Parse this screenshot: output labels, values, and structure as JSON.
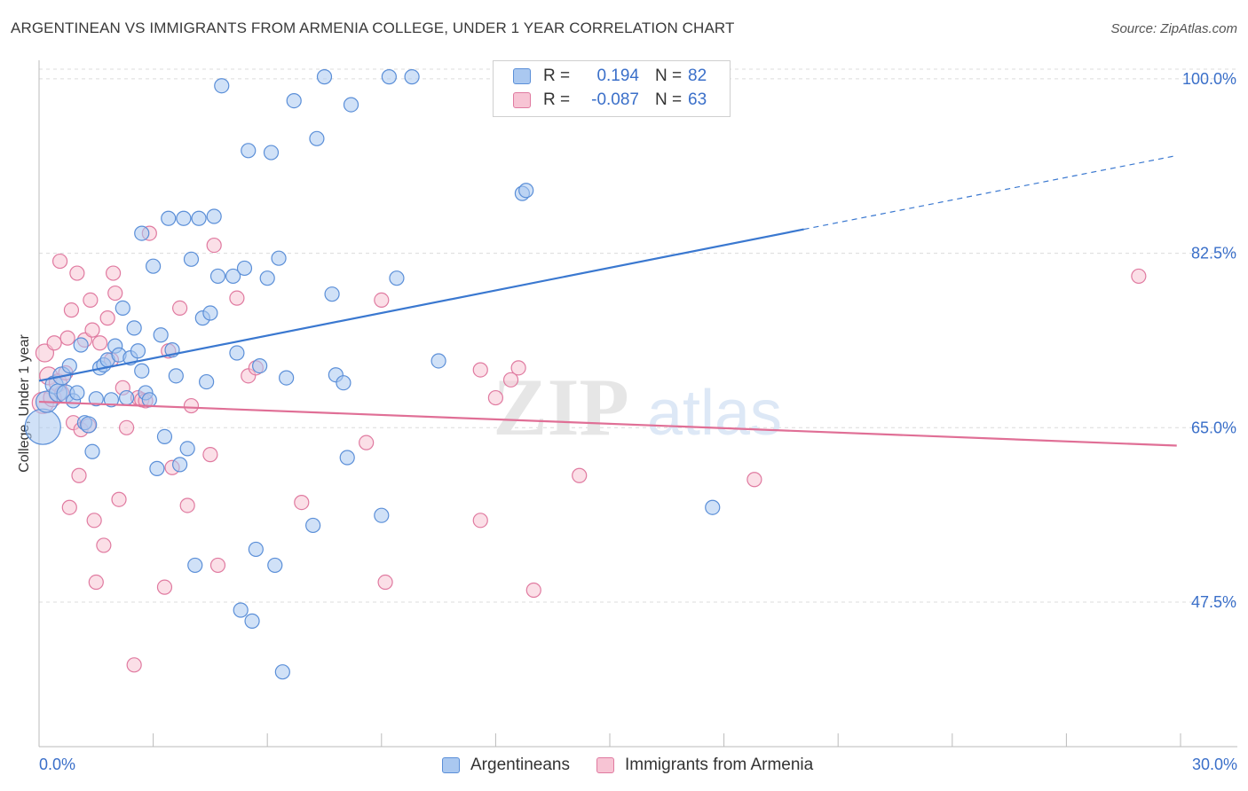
{
  "title": "ARGENTINEAN VS IMMIGRANTS FROM ARMENIA COLLEGE, UNDER 1 YEAR CORRELATION CHART",
  "source": "Source: ZipAtlas.com",
  "watermark": {
    "zip": "ZIP",
    "atlas": "atlas"
  },
  "legend": {
    "r_label": "R =",
    "n_label": "N =",
    "rows": [
      {
        "name": "Argentineans",
        "r": "0.194",
        "n": "82",
        "fill": "#aac8f0",
        "stroke": "#5b8fd8"
      },
      {
        "name": "Immigrants from Armenia",
        "r": "-0.087",
        "n": "63",
        "fill": "#f7c4d4",
        "stroke": "#e07aa0"
      }
    ]
  },
  "chart_data": {
    "type": "scatter",
    "title": "ARGENTINEAN VS IMMIGRANTS FROM ARMENIA COLLEGE, UNDER 1 YEAR CORRELATION CHART",
    "xlabel": "",
    "ylabel": "College, Under 1 year",
    "xlim": [
      0,
      30
    ],
    "ylim": [
      33,
      101.5
    ],
    "x_tick_labels": [
      "0.0%",
      "30.0%"
    ],
    "y_ticks": [
      47.5,
      65.0,
      82.5,
      100.0
    ],
    "y_tick_labels": [
      "47.5%",
      "65.0%",
      "82.5%",
      "100.0%"
    ],
    "colors": {
      "blue": "#3a78d0",
      "pink": "#e06f96",
      "axis_text": "#3a6fc9"
    },
    "series": [
      {
        "name": "Argentineans",
        "color": "#5b8fd8",
        "fill": "#aac8f0",
        "trend": {
          "x0": 0,
          "y0": 69.7,
          "x1": 20.1,
          "y1": 84.9,
          "dash_x1": 29.9,
          "dash_y1": 92.3
        },
        "points": [
          [
            0.1,
            65.1,
            20
          ],
          [
            0.2,
            67.6,
            12
          ],
          [
            0.4,
            69.3,
            10
          ],
          [
            0.5,
            68.5,
            10
          ],
          [
            0.6,
            70.2,
            10
          ],
          [
            0.7,
            68.4,
            10
          ],
          [
            0.8,
            71.2,
            8
          ],
          [
            0.9,
            67.7,
            8
          ],
          [
            1.0,
            68.5,
            8
          ],
          [
            1.1,
            73.3,
            8
          ],
          [
            1.2,
            65.5,
            8
          ],
          [
            1.3,
            65.3,
            9
          ],
          [
            1.4,
            62.6,
            8
          ],
          [
            1.5,
            67.9,
            8
          ],
          [
            1.6,
            71.0,
            8
          ],
          [
            1.7,
            71.3,
            8
          ],
          [
            1.8,
            71.8,
            8
          ],
          [
            1.9,
            67.8,
            8
          ],
          [
            2.0,
            73.2,
            8
          ],
          [
            2.1,
            72.3,
            8
          ],
          [
            2.2,
            77.0,
            8
          ],
          [
            2.3,
            68.0,
            8
          ],
          [
            2.4,
            72.0,
            8
          ],
          [
            2.5,
            75.0,
            8
          ],
          [
            2.6,
            72.7,
            8
          ],
          [
            2.7,
            84.5,
            8
          ],
          [
            2.7,
            70.7,
            8
          ],
          [
            2.8,
            68.5,
            8
          ],
          [
            2.9,
            67.8,
            8
          ],
          [
            3.0,
            81.2,
            8
          ],
          [
            3.1,
            60.9,
            8
          ],
          [
            3.2,
            74.3,
            8
          ],
          [
            3.3,
            64.1,
            8
          ],
          [
            3.4,
            86.0,
            8
          ],
          [
            3.5,
            72.8,
            8
          ],
          [
            3.6,
            70.2,
            8
          ],
          [
            3.7,
            61.3,
            8
          ],
          [
            3.8,
            86.0,
            8
          ],
          [
            3.9,
            62.9,
            8
          ],
          [
            4.0,
            81.9,
            8
          ],
          [
            4.1,
            51.2,
            8
          ],
          [
            4.2,
            86.0,
            8
          ],
          [
            4.3,
            76.0,
            8
          ],
          [
            4.4,
            69.6,
            8
          ],
          [
            4.5,
            76.5,
            8
          ],
          [
            4.6,
            86.2,
            8
          ],
          [
            4.7,
            80.2,
            8
          ],
          [
            4.8,
            99.3,
            8
          ],
          [
            5.1,
            80.2,
            8
          ],
          [
            5.2,
            72.5,
            8
          ],
          [
            5.3,
            46.7,
            8
          ],
          [
            5.4,
            81.0,
            8
          ],
          [
            5.5,
            92.8,
            8
          ],
          [
            5.6,
            45.6,
            8
          ],
          [
            5.7,
            52.8,
            8
          ],
          [
            5.8,
            71.2,
            8
          ],
          [
            6.0,
            80.0,
            8
          ],
          [
            6.1,
            92.6,
            8
          ],
          [
            6.2,
            51.2,
            8
          ],
          [
            6.3,
            82.0,
            8
          ],
          [
            6.4,
            40.5,
            8
          ],
          [
            6.5,
            70.0,
            8
          ],
          [
            6.7,
            97.8,
            8
          ],
          [
            7.2,
            55.2,
            8
          ],
          [
            7.3,
            94.0,
            8
          ],
          [
            7.5,
            100.2,
            8
          ],
          [
            7.7,
            78.4,
            8
          ],
          [
            7.8,
            70.3,
            8
          ],
          [
            8.0,
            69.5,
            8
          ],
          [
            8.1,
            62.0,
            8
          ],
          [
            8.2,
            97.4,
            8
          ],
          [
            9.0,
            56.2,
            8
          ],
          [
            9.2,
            100.2,
            8
          ],
          [
            9.4,
            80.0,
            8
          ],
          [
            9.8,
            100.2,
            8
          ],
          [
            10.5,
            71.7,
            8
          ],
          [
            12.7,
            88.5,
            8
          ],
          [
            12.8,
            88.8,
            8
          ],
          [
            17.7,
            57.0,
            8
          ]
        ]
      },
      {
        "name": "Immigrants from Armenia",
        "color": "#e07aa0",
        "fill": "#f7c4d4",
        "trend": {
          "x0": 0,
          "y0": 67.6,
          "x1": 29.9,
          "y1": 63.2
        },
        "points": [
          [
            0.1,
            67.5,
            12
          ],
          [
            0.15,
            72.5,
            10
          ],
          [
            0.25,
            70.2,
            10
          ],
          [
            0.35,
            68.0,
            10
          ],
          [
            0.4,
            73.5,
            8
          ],
          [
            0.5,
            69.5,
            10
          ],
          [
            0.55,
            81.7,
            8
          ],
          [
            0.6,
            68.5,
            8
          ],
          [
            0.7,
            70.5,
            8
          ],
          [
            0.75,
            74.0,
            8
          ],
          [
            0.8,
            57.0,
            8
          ],
          [
            0.85,
            76.8,
            8
          ],
          [
            0.9,
            65.5,
            8
          ],
          [
            1.0,
            80.5,
            8
          ],
          [
            1.05,
            60.2,
            8
          ],
          [
            1.1,
            64.8,
            8
          ],
          [
            1.2,
            73.8,
            8
          ],
          [
            1.3,
            65.2,
            8
          ],
          [
            1.35,
            77.8,
            8
          ],
          [
            1.4,
            74.8,
            8
          ],
          [
            1.45,
            55.7,
            8
          ],
          [
            1.5,
            49.5,
            8
          ],
          [
            1.6,
            73.5,
            8
          ],
          [
            1.7,
            53.2,
            8
          ],
          [
            1.8,
            76.0,
            8
          ],
          [
            1.9,
            71.8,
            8
          ],
          [
            1.95,
            80.5,
            8
          ],
          [
            2.0,
            78.5,
            8
          ],
          [
            2.1,
            57.8,
            8
          ],
          [
            2.2,
            69.0,
            8
          ],
          [
            2.3,
            65.0,
            8
          ],
          [
            2.5,
            41.2,
            8
          ],
          [
            2.6,
            68.0,
            8
          ],
          [
            2.7,
            67.8,
            8
          ],
          [
            2.8,
            67.7,
            8
          ],
          [
            2.9,
            84.5,
            8
          ],
          [
            3.3,
            49.0,
            8
          ],
          [
            3.4,
            72.7,
            8
          ],
          [
            3.5,
            61.0,
            8
          ],
          [
            3.7,
            77.0,
            8
          ],
          [
            3.9,
            57.2,
            8
          ],
          [
            4.0,
            67.2,
            8
          ],
          [
            4.5,
            62.3,
            8
          ],
          [
            4.6,
            83.3,
            8
          ],
          [
            4.7,
            51.2,
            8
          ],
          [
            5.2,
            78.0,
            8
          ],
          [
            5.5,
            70.2,
            8
          ],
          [
            5.7,
            71.0,
            8
          ],
          [
            6.9,
            57.5,
            8
          ],
          [
            8.6,
            63.5,
            8
          ],
          [
            9.0,
            77.8,
            8
          ],
          [
            9.1,
            49.5,
            8
          ],
          [
            11.6,
            55.7,
            8
          ],
          [
            11.6,
            70.8,
            8
          ],
          [
            12.0,
            68.0,
            8
          ],
          [
            12.4,
            69.8,
            8
          ],
          [
            12.6,
            71.0,
            8
          ],
          [
            13.0,
            48.7,
            8
          ],
          [
            14.2,
            60.2,
            8
          ],
          [
            18.8,
            59.8,
            8
          ],
          [
            28.9,
            80.2,
            8
          ]
        ]
      }
    ]
  }
}
